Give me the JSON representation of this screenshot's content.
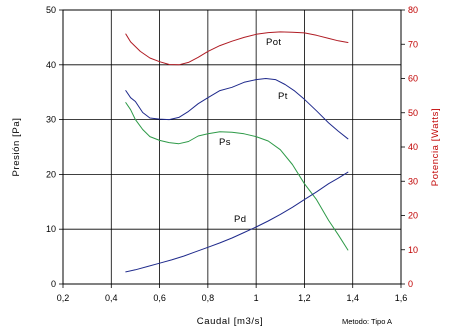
{
  "chart_data": {
    "type": "line",
    "xlabel": "Caudal [m3/s]",
    "ylabel": "Presión [Pa]",
    "ylabel_right": "Potencia [Watts]",
    "xlim": [
      0.2,
      1.6
    ],
    "ylim": [
      0,
      50
    ],
    "ylim_right": [
      0,
      80
    ],
    "x_ticks": [
      "0,2",
      "0,4",
      "0,6",
      "0,8",
      "1",
      "1,2",
      "1,4",
      "1,6"
    ],
    "y_ticks": [
      "0",
      "10",
      "20",
      "30",
      "40",
      "50"
    ],
    "y_right_ticks": [
      "0",
      "10",
      "20",
      "30",
      "40",
      "50",
      "60",
      "70",
      "80"
    ],
    "grid": true,
    "note": "Metodo: Tipo A",
    "colors": {
      "Pot": "#b01c24",
      "Pt": "#1f2a8c",
      "Ps": "#2e9a48",
      "Pd": "#1f2a8c",
      "right_axis": "#c00000"
    },
    "series": [
      {
        "name": "Pot",
        "axis": "right",
        "x": [
          0.46,
          0.48,
          0.52,
          0.56,
          0.6,
          0.64,
          0.68,
          0.72,
          0.76,
          0.8,
          0.85,
          0.9,
          0.95,
          1.0,
          1.05,
          1.1,
          1.15,
          1.2,
          1.25,
          1.3,
          1.34,
          1.38
        ],
        "values": [
          73.0,
          70.7,
          67.9,
          66.0,
          64.9,
          64.1,
          64.0,
          64.7,
          66.2,
          67.9,
          69.6,
          70.9,
          72.0,
          72.9,
          73.4,
          73.6,
          73.5,
          73.3,
          72.6,
          71.7,
          71.0,
          70.5
        ]
      },
      {
        "name": "Pt",
        "axis": "left",
        "x": [
          0.46,
          0.48,
          0.5,
          0.53,
          0.56,
          0.6,
          0.64,
          0.68,
          0.72,
          0.76,
          0.8,
          0.85,
          0.9,
          0.95,
          1.0,
          1.04,
          1.08,
          1.12,
          1.16,
          1.2,
          1.25,
          1.3,
          1.34,
          1.38
        ],
        "values": [
          35.3,
          34.0,
          33.3,
          31.3,
          30.3,
          30.1,
          30.0,
          30.4,
          31.5,
          32.9,
          34.0,
          35.3,
          35.9,
          36.8,
          37.3,
          37.5,
          37.3,
          36.4,
          35.2,
          33.7,
          31.6,
          29.4,
          27.9,
          26.5
        ]
      },
      {
        "name": "Ps",
        "axis": "left",
        "x": [
          0.46,
          0.48,
          0.5,
          0.53,
          0.56,
          0.6,
          0.64,
          0.68,
          0.72,
          0.76,
          0.8,
          0.85,
          0.9,
          0.95,
          1.0,
          1.05,
          1.1,
          1.15,
          1.2,
          1.25,
          1.3,
          1.34,
          1.38
        ],
        "values": [
          33.1,
          31.8,
          30.0,
          28.2,
          26.9,
          26.2,
          25.8,
          25.6,
          26.0,
          27.0,
          27.4,
          27.8,
          27.7,
          27.4,
          26.9,
          26.1,
          24.5,
          21.8,
          18.3,
          15.4,
          11.6,
          9.0,
          6.2
        ]
      },
      {
        "name": "Pd",
        "axis": "left",
        "x": [
          0.46,
          0.5,
          0.55,
          0.6,
          0.65,
          0.7,
          0.75,
          0.8,
          0.85,
          0.9,
          0.95,
          1.0,
          1.05,
          1.1,
          1.15,
          1.2,
          1.25,
          1.3,
          1.34,
          1.38
        ],
        "values": [
          2.2,
          2.6,
          3.2,
          3.8,
          4.4,
          5.1,
          5.9,
          6.7,
          7.5,
          8.4,
          9.4,
          10.4,
          11.5,
          12.7,
          14.0,
          15.4,
          16.8,
          18.3,
          19.3,
          20.4
        ]
      }
    ]
  }
}
